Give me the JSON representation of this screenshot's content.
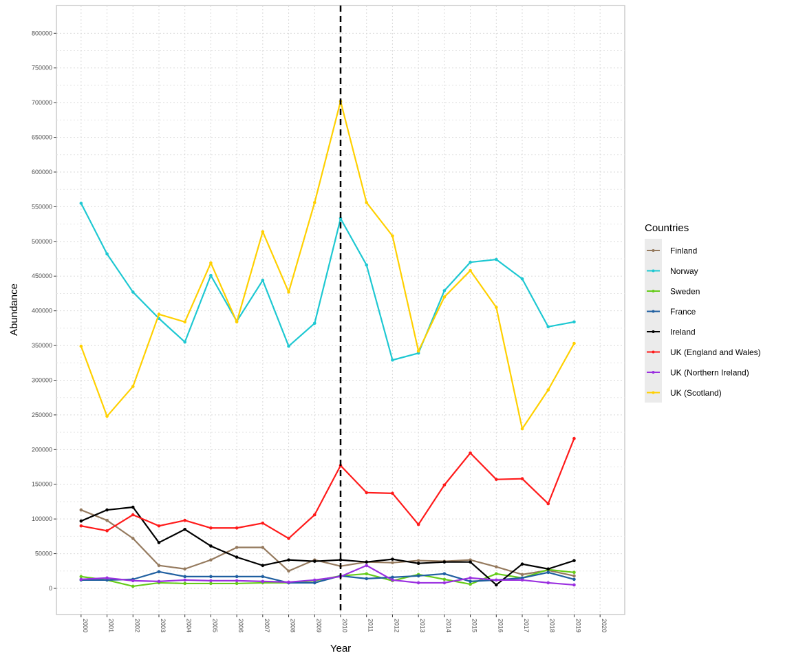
{
  "chart_data": {
    "type": "line",
    "title": "",
    "xlabel": "Year",
    "ylabel": "Abundance",
    "x": [
      2000,
      2001,
      2002,
      2003,
      2004,
      2005,
      2006,
      2007,
      2008,
      2009,
      2010,
      2011,
      2012,
      2013,
      2014,
      2015,
      2016,
      2017,
      2018,
      2019
    ],
    "xticks": [
      "2000",
      "2001",
      "2002",
      "2003",
      "2004",
      "2005",
      "2006",
      "2007",
      "2008",
      "2009",
      "2010",
      "2011",
      "2012",
      "2013",
      "2014",
      "2015",
      "2016",
      "2017",
      "2018",
      "2019",
      "2020"
    ],
    "yticks": [
      "0",
      "50000",
      "100000",
      "150000",
      "200000",
      "250000",
      "300000",
      "350000",
      "400000",
      "450000",
      "500000",
      "550000",
      "600000",
      "650000",
      "700000",
      "750000",
      "800000"
    ],
    "xlim": [
      1999.05,
      2020.95
    ],
    "ylim": [
      -37700,
      840000
    ],
    "grid": true,
    "grid_style": "dotted",
    "vline": {
      "x": 2010,
      "style": "dashed",
      "color": "#000000"
    },
    "legend": {
      "title": "Countries",
      "placement": "right"
    },
    "series": [
      {
        "name": "Finland",
        "color": "#957A5E",
        "values": [
          113000,
          98000,
          72000,
          33000,
          28000,
          41000,
          59000,
          59000,
          25000,
          41000,
          32000,
          38000,
          37000,
          40000,
          39000,
          41000,
          31000,
          20000,
          26000,
          18000
        ]
      },
      {
        "name": "Norway",
        "color": "#1EC8D2",
        "values": [
          555000,
          482000,
          427000,
          389000,
          355000,
          451000,
          385000,
          444000,
          349000,
          382000,
          533000,
          466000,
          329000,
          339000,
          429000,
          470000,
          474000,
          446000,
          377000,
          384000
        ]
      },
      {
        "name": "Sweden",
        "color": "#66CC1A",
        "values": [
          17000,
          12000,
          3000,
          8000,
          7000,
          7000,
          7000,
          8000,
          8000,
          11000,
          18000,
          21000,
          11000,
          20000,
          13000,
          6000,
          21000,
          15000,
          27000,
          23000
        ]
      },
      {
        "name": "France",
        "color": "#1F5FA0",
        "values": [
          12000,
          12000,
          13000,
          24000,
          17000,
          17000,
          17000,
          17000,
          8000,
          8000,
          18000,
          14000,
          16000,
          18000,
          21000,
          10000,
          12000,
          15000,
          23000,
          13000
        ]
      },
      {
        "name": "Ireland",
        "color": "#000000",
        "values": [
          97000,
          113000,
          117000,
          66000,
          85000,
          61000,
          45000,
          33000,
          41000,
          39000,
          41000,
          38000,
          42000,
          36000,
          38000,
          38000,
          5000,
          35000,
          28000,
          40000
        ]
      },
      {
        "name": "UK (England and Wales)",
        "color": "#FF1A1A",
        "values": [
          90000,
          83000,
          106000,
          90000,
          98000,
          87000,
          87000,
          94000,
          72000,
          106000,
          177000,
          138000,
          137000,
          92000,
          149000,
          195000,
          157000,
          158000,
          122000,
          216000
        ]
      },
      {
        "name": "UK (Northern Ireland)",
        "color": "#9B30E0",
        "values": [
          13000,
          15000,
          11000,
          10000,
          12000,
          11000,
          11000,
          10000,
          9000,
          12000,
          17000,
          33000,
          12000,
          8000,
          8000,
          15000,
          12000,
          12000,
          8000,
          5000
        ]
      },
      {
        "name": "UK (Scotland)",
        "color": "#FFD000",
        "values": [
          349000,
          248000,
          291000,
          395000,
          384000,
          469000,
          384000,
          514000,
          427000,
          556000,
          702000,
          556000,
          508000,
          342000,
          420000,
          458000,
          405000,
          230000,
          286000,
          353000
        ]
      }
    ]
  }
}
